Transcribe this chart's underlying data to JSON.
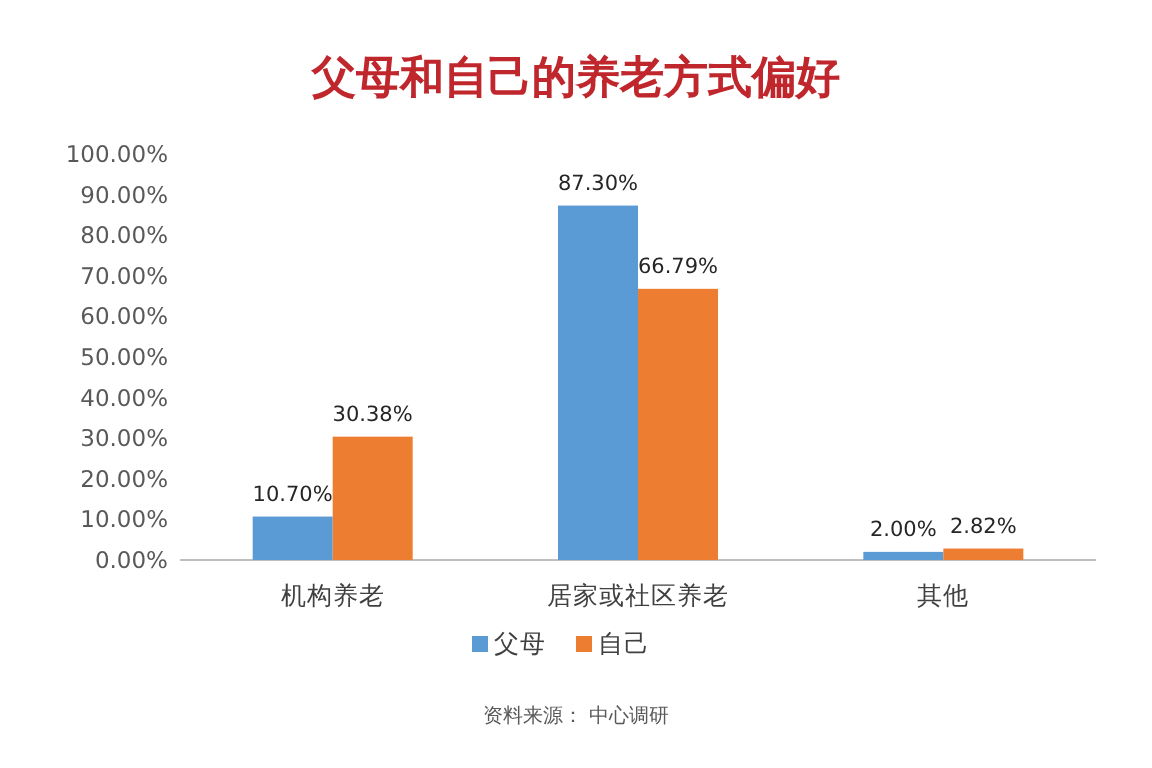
{
  "chart_data": {
    "type": "bar",
    "title": "父母和自己的养老方式偏好",
    "categories": [
      "机构养老",
      "居家或社区养老",
      "其他"
    ],
    "series": [
      {
        "name": "父母",
        "color": "#5b9bd5",
        "values": [
          10.7,
          87.3,
          2.0
        ],
        "value_labels": [
          "10.70%",
          "87.30%",
          "2.00%"
        ]
      },
      {
        "name": "自己",
        "color": "#ed7d31",
        "values": [
          30.38,
          66.79,
          2.82
        ],
        "value_labels": [
          "30.38%",
          "66.79%",
          "2.82%"
        ]
      }
    ],
    "ylim": [
      0,
      100
    ],
    "yticks": [
      {
        "value": 0,
        "label": "0.00%"
      },
      {
        "value": 10,
        "label": "10.00%"
      },
      {
        "value": 20,
        "label": "20.00%"
      },
      {
        "value": 30,
        "label": "30.00%"
      },
      {
        "value": 40,
        "label": "40.00%"
      },
      {
        "value": 50,
        "label": "50.00%"
      },
      {
        "value": 60,
        "label": "60.00%"
      },
      {
        "value": 70,
        "label": "70.00%"
      },
      {
        "value": 80,
        "label": "80.00%"
      },
      {
        "value": 90,
        "label": "90.00%"
      },
      {
        "value": 100,
        "label": "100.00%"
      }
    ],
    "legend": "bottom",
    "annotations": [
      "资料来源： 中心调研"
    ]
  }
}
